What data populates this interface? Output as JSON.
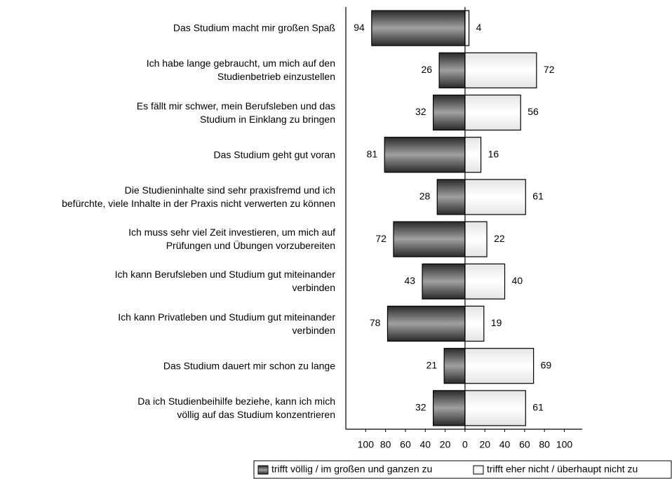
{
  "chart_data": {
    "type": "diverging_bar",
    "categories": [
      "Das Studium macht mir großen Spaß",
      "Ich habe lange gebraucht, um mich auf den\nStudienbetrieb einzustellen",
      "Es fällt mir schwer, mein Berufsleben und das\nStudium in Einklang zu bringen",
      "Das Studium geht gut voran",
      "Die Studieninhalte sind sehr praxisfremd und ich\nbefürchte, viele Inhalte in der Praxis nicht verwerten zu können",
      "Ich muss sehr viel Zeit investieren, um mich auf\nPrüfungen und Übungen vorzubereiten",
      "Ich kann Berufsleben und Studium gut miteinander\nverbinden",
      "Ich kann Privatleben und Studium gut miteinander\nverbinden",
      "Das Studium dauert mir schon zu lange",
      "Da ich Studienbeihilfe beziehe, kann ich mich\nvöllig auf das Studium konzentrieren"
    ],
    "series": [
      {
        "name": "trifft völlig / im großen und ganzen zu",
        "color": "#2a2a2a",
        "values": [
          -94,
          -26,
          -32,
          -81,
          -28,
          -72,
          -43,
          -78,
          -21,
          -32
        ],
        "value_labels": [
          "94",
          "26",
          "32",
          "81",
          "28",
          "72",
          "43",
          "78",
          "21",
          "32"
        ]
      },
      {
        "name": "trifft eher nicht / überhaupt nicht zu",
        "color": "#e4e4e4",
        "values": [
          4,
          72,
          56,
          16,
          61,
          22,
          40,
          19,
          69,
          61
        ]
      }
    ],
    "xlim": [
      -120,
      118
    ],
    "xticks": [
      {
        "value": -100,
        "label": "100"
      },
      {
        "value": -80,
        "label": "80"
      },
      {
        "value": -60,
        "label": "60"
      },
      {
        "value": -40,
        "label": "40"
      },
      {
        "value": -20,
        "label": "20"
      },
      0,
      20,
      40,
      60,
      80,
      100
    ]
  }
}
